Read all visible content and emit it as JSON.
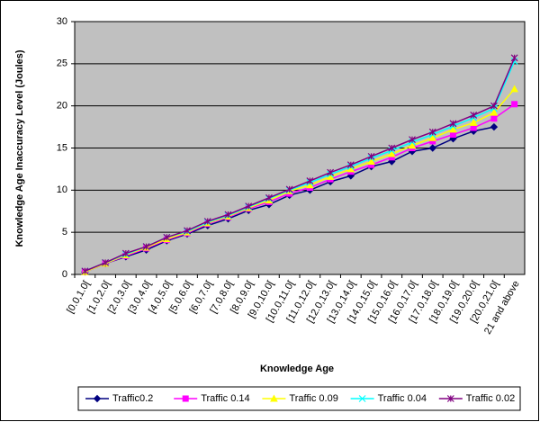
{
  "chart_data": {
    "type": "line",
    "x_label": "Knowledge Age",
    "y_label": "Knowledge Age Inaccuracy Level (Joules)",
    "categories": [
      "[0.0,1.0[",
      "[1.0,2.0[",
      "[2.0,3.0[",
      "[3.0,4.0[",
      "[4.0,5.0[",
      "[5.0,6.0[",
      "[6.0,7.0[",
      "[7.0,8.0[",
      "[8.0,9.0[",
      "[9.0,10.0[",
      "[10.0,11.0[",
      "[11.0,12.0[",
      "[12.0,13.0[",
      "[13.0,14.0[",
      "[14.0,15.0[",
      "[15.0,16.0[",
      "[16.0,17.0[",
      "[17.0,18.0[",
      "[18.0,19.0[",
      "[19.0,20.0[",
      "[20.0,21.0[",
      "21 and above"
    ],
    "series": [
      {
        "name": "Traffic0.2",
        "color": "#000080",
        "marker": "diamond",
        "values": [
          0.3,
          1.3,
          2.1,
          2.9,
          4.0,
          4.8,
          5.8,
          6.6,
          7.6,
          8.3,
          9.4,
          10.0,
          11.0,
          11.7,
          12.8,
          13.4,
          14.6,
          15.0,
          16.1,
          17.0,
          17.5,
          null
        ]
      },
      {
        "name": "Traffic 0.14",
        "color": "#ff00ff",
        "marker": "square",
        "values": [
          0.3,
          1.3,
          2.2,
          3.1,
          4.1,
          4.9,
          6.0,
          6.8,
          7.8,
          8.6,
          9.6,
          10.3,
          11.3,
          12.2,
          13.0,
          13.9,
          15.0,
          15.8,
          16.6,
          17.4,
          18.5,
          20.2
        ]
      },
      {
        "name": "Traffic 0.09",
        "color": "#ffff00",
        "marker": "triangle",
        "values": [
          0.3,
          1.3,
          2.3,
          3.2,
          4.2,
          5.0,
          6.1,
          6.9,
          7.9,
          8.8,
          9.9,
          10.6,
          11.6,
          12.5,
          13.4,
          14.3,
          15.3,
          16.2,
          17.2,
          18.0,
          19.2,
          22.0
        ]
      },
      {
        "name": "Traffic 0.04",
        "color": "#00ffff",
        "marker": "x",
        "values": [
          0.4,
          1.4,
          2.4,
          3.3,
          4.4,
          5.1,
          6.2,
          7.0,
          8.0,
          9.0,
          10.0,
          10.9,
          11.9,
          12.8,
          13.8,
          14.7,
          15.7,
          16.6,
          17.6,
          18.6,
          19.7,
          25.3
        ]
      },
      {
        "name": "Traffic 0.02",
        "color": "#800080",
        "marker": "star",
        "values": [
          0.4,
          1.4,
          2.5,
          3.3,
          4.4,
          5.2,
          6.3,
          7.1,
          8.1,
          9.1,
          10.1,
          11.1,
          12.1,
          13.0,
          14.0,
          15.0,
          16.0,
          16.9,
          17.9,
          18.9,
          20.0,
          25.7
        ]
      }
    ],
    "ylim": [
      0,
      30
    ],
    "yticks": [
      0,
      5,
      10,
      15,
      20,
      25,
      30
    ],
    "grid": true,
    "plot_background": "#c0c0c0",
    "legend": "bottom"
  }
}
